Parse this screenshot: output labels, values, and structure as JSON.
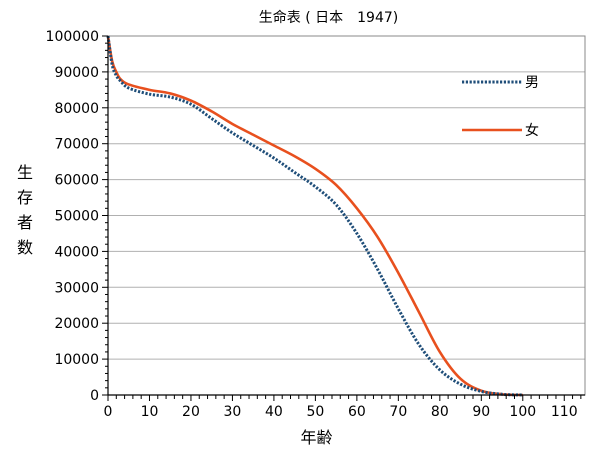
{
  "chart_data": {
    "type": "line",
    "title": "生命表 ( 日本　1947)",
    "xlabel": "年齢",
    "ylabel": "生存者数",
    "xlim": [
      0,
      115
    ],
    "ylim": [
      0,
      100000
    ],
    "x_ticks": [
      0,
      10,
      20,
      30,
      40,
      50,
      60,
      70,
      80,
      90,
      100,
      110
    ],
    "y_ticks": [
      0,
      10000,
      20000,
      30000,
      40000,
      50000,
      60000,
      70000,
      80000,
      90000,
      100000
    ],
    "grid": "horizontal",
    "legend": "top-right",
    "series": [
      {
        "name": "男",
        "color": "#1f4e79",
        "style": "dotted",
        "x": [
          0,
          1,
          2,
          3,
          5,
          10,
          15,
          20,
          25,
          30,
          35,
          40,
          45,
          50,
          55,
          60,
          65,
          70,
          75,
          80,
          85,
          90,
          95,
          100
        ],
        "y": [
          100000,
          92000,
          89000,
          87500,
          85500,
          83800,
          83000,
          81000,
          77000,
          73000,
          69500,
          66000,
          62000,
          58000,
          53000,
          45000,
          35000,
          24000,
          14000,
          7000,
          3000,
          1000,
          200,
          0
        ]
      },
      {
        "name": "女",
        "color": "#e8501e",
        "style": "solid",
        "x": [
          0,
          1,
          2,
          3,
          5,
          10,
          15,
          20,
          25,
          30,
          35,
          40,
          45,
          50,
          55,
          60,
          65,
          70,
          75,
          80,
          85,
          90,
          95,
          100
        ],
        "y": [
          100000,
          93000,
          90000,
          88000,
          86500,
          85000,
          84000,
          82000,
          79000,
          75500,
          72500,
          69500,
          66500,
          63000,
          58500,
          52000,
          44000,
          34000,
          23000,
          12000,
          4500,
          1200,
          200,
          0
        ]
      }
    ]
  }
}
